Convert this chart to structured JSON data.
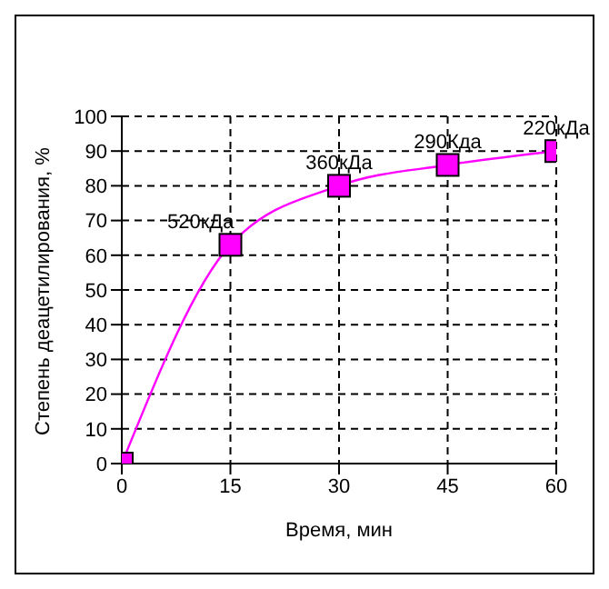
{
  "chart_data": {
    "type": "line",
    "xlabel": "Время, мин",
    "ylabel": "Степень деацетилирования, %",
    "x": [
      0,
      15,
      30,
      45,
      60
    ],
    "series": [
      {
        "color": "#ff00ff",
        "values": [
          0,
          63,
          80,
          86,
          90
        ]
      }
    ],
    "xlim": [
      0,
      60
    ],
    "xticks": [
      0,
      15,
      30,
      45,
      60
    ],
    "ylim": [
      0,
      100
    ],
    "yticks": [
      0,
      10,
      20,
      30,
      40,
      50,
      60,
      70,
      80,
      90,
      100
    ],
    "grid": true,
    "marker": "square",
    "line_style": "solid",
    "legend": false,
    "annotations": [
      {
        "text": "520кДа",
        "x": 15,
        "y": 63
      },
      {
        "text": "360кДа",
        "x": 30,
        "y": 80
      },
      {
        "text": "290Кда",
        "x": 45,
        "y": 86
      },
      {
        "text": "220кДа",
        "x": 60,
        "y": 90
      }
    ]
  }
}
